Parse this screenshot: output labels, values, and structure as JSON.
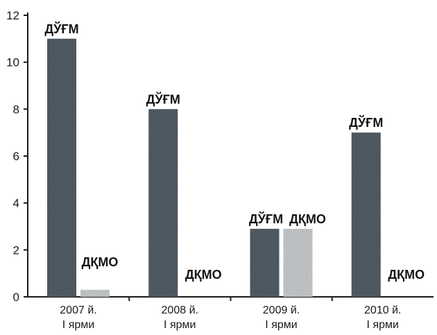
{
  "chart_data": {
    "type": "bar",
    "categories": [
      [
        "2007 й.",
        "I ярми"
      ],
      [
        "2008 й.",
        "I ярми"
      ],
      [
        "2009 й.",
        "I ярми"
      ],
      [
        "2010 й.",
        "I ярми"
      ]
    ],
    "series": [
      {
        "label": "ДЎҒМ",
        "values": [
          11,
          8,
          2.9,
          7
        ],
        "color": "#5a6670"
      },
      {
        "label": "ДҚМО",
        "values": [
          0.3,
          0,
          2.9,
          0
        ],
        "color": "#d9dcde"
      }
    ],
    "yticks": [
      "0",
      "2",
      "4",
      "6",
      "8",
      "10",
      "12"
    ],
    "ylim": [
      0,
      12
    ],
    "grid": false,
    "legend": "none"
  }
}
